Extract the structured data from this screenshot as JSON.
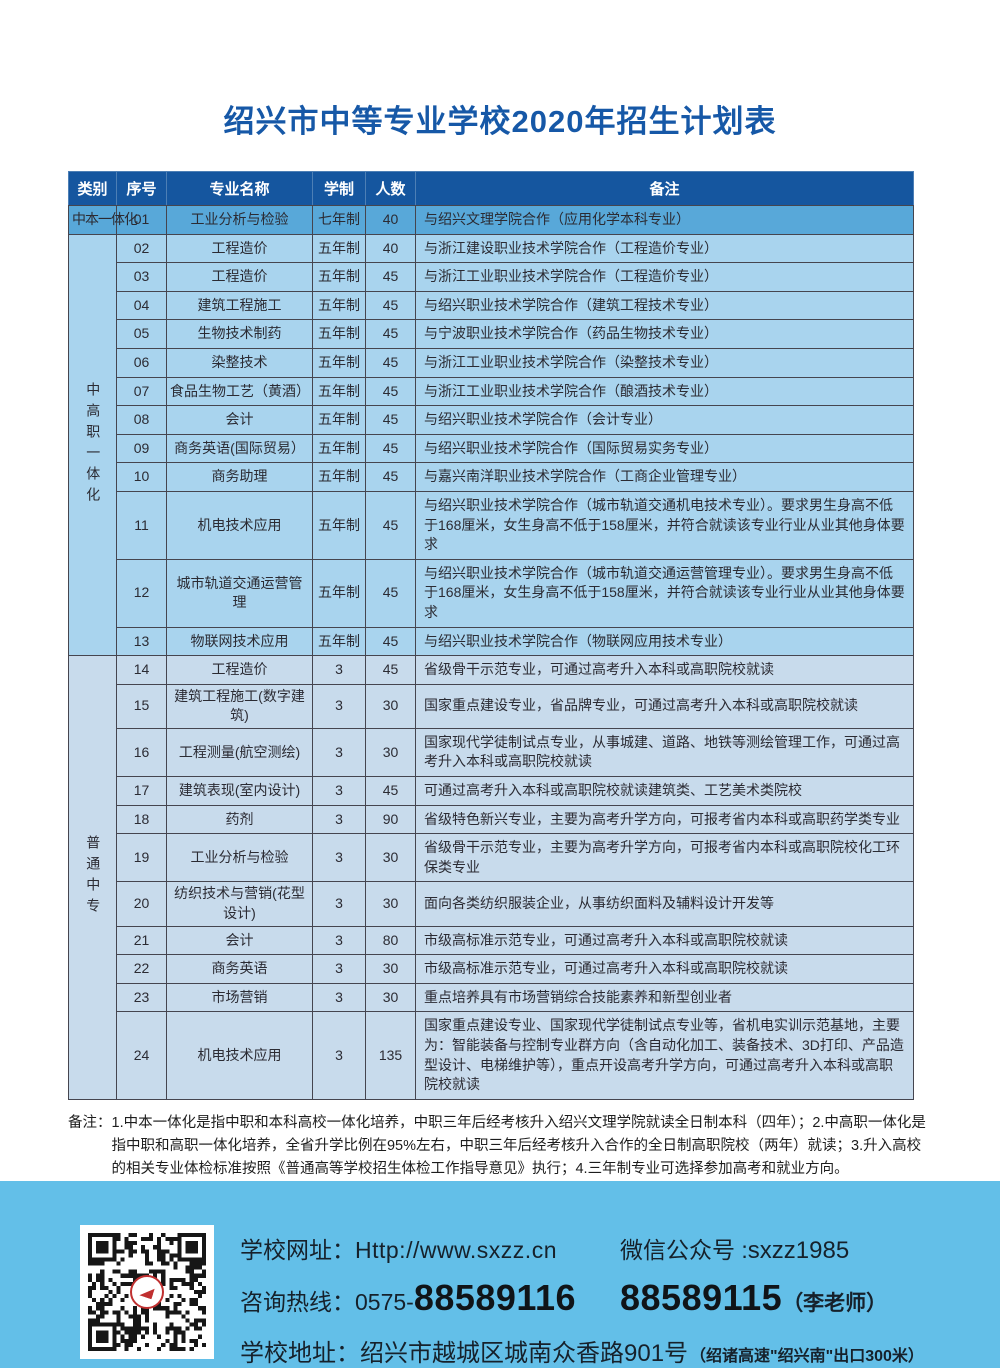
{
  "title": "绍兴市中等专业学校2020年招生计划表",
  "colors": {
    "header_bg": "#15569f",
    "row_group0": "#58a8d9",
    "row_group1": "#a9d4ee",
    "row_group2": "#c8dbec",
    "title_blue": "#1658a7",
    "footer_bg": "#63bfe8",
    "qr_logo_red": "#c03030"
  },
  "table": {
    "headers": [
      "类别",
      "序号",
      "专业名称",
      "学制",
      "人数",
      "备注"
    ],
    "groups": [
      {
        "label": "中本一体化",
        "vertical": false
      },
      {
        "label": "中高职一体化",
        "vertical": true
      },
      {
        "label": "普通中专",
        "vertical": true
      }
    ],
    "rows": [
      {
        "group": 0,
        "no": "01",
        "major": "工业分析与检验",
        "years": "七年制",
        "count": "40",
        "remark": "与绍兴文理学院合作（应用化学本科专业）"
      },
      {
        "group": 1,
        "no": "02",
        "major": "工程造价",
        "years": "五年制",
        "count": "40",
        "remark": "与浙江建设职业技术学院合作（工程造价专业）"
      },
      {
        "group": 1,
        "no": "03",
        "major": "工程造价",
        "years": "五年制",
        "count": "45",
        "remark": "与浙江工业职业技术学院合作（工程造价专业）"
      },
      {
        "group": 1,
        "no": "04",
        "major": "建筑工程施工",
        "years": "五年制",
        "count": "45",
        "remark": "与绍兴职业技术学院合作（建筑工程技术专业）"
      },
      {
        "group": 1,
        "no": "05",
        "major": "生物技术制药",
        "years": "五年制",
        "count": "45",
        "remark": "与宁波职业技术学院合作（药品生物技术专业）"
      },
      {
        "group": 1,
        "no": "06",
        "major": "染整技术",
        "years": "五年制",
        "count": "45",
        "remark": "与浙江工业职业技术学院合作（染整技术专业）"
      },
      {
        "group": 1,
        "no": "07",
        "major": "食品生物工艺（黄酒）",
        "years": "五年制",
        "count": "45",
        "remark": "与浙江工业职业技术学院合作（酿酒技术专业）"
      },
      {
        "group": 1,
        "no": "08",
        "major": "会计",
        "years": "五年制",
        "count": "45",
        "remark": "与绍兴职业技术学院合作（会计专业）"
      },
      {
        "group": 1,
        "no": "09",
        "major": "商务英语(国际贸易）",
        "years": "五年制",
        "count": "45",
        "remark": "与绍兴职业技术学院合作（国际贸易实务专业）"
      },
      {
        "group": 1,
        "no": "10",
        "major": "商务助理",
        "years": "五年制",
        "count": "45",
        "remark": "与嘉兴南洋职业技术学院合作（工商企业管理专业）"
      },
      {
        "group": 1,
        "no": "11",
        "major": "机电技术应用",
        "years": "五年制",
        "count": "45",
        "remark": "与绍兴职业技术学院合作（城市轨道交通机电技术专业）。要求男生身高不低于168厘米，女生身高不低于158厘米，并符合就读该专业行业从业其他身体要求"
      },
      {
        "group": 1,
        "no": "12",
        "major": "城市轨道交通运营管理",
        "years": "五年制",
        "count": "45",
        "remark": "与绍兴职业技术学院合作（城市轨道交通运营管理专业）。要求男生身高不低于168厘米，女生身高不低于158厘米，并符合就读该专业行业从业其他身体要求"
      },
      {
        "group": 1,
        "no": "13",
        "major": "物联网技术应用",
        "years": "五年制",
        "count": "45",
        "remark": "与绍兴职业技术学院合作（物联网应用技术专业）"
      },
      {
        "group": 2,
        "no": "14",
        "major": "工程造价",
        "years": "3",
        "count": "45",
        "remark": "省级骨干示范专业，可通过高考升入本科或高职院校就读"
      },
      {
        "group": 2,
        "no": "15",
        "major": "建筑工程施工(数字建筑)",
        "years": "3",
        "count": "30",
        "remark": "国家重点建设专业，省品牌专业，可通过高考升入本科或高职院校就读"
      },
      {
        "group": 2,
        "no": "16",
        "major": "工程测量(航空测绘)",
        "years": "3",
        "count": "30",
        "remark": "国家现代学徒制试点专业，从事城建、道路、地铁等测绘管理工作，可通过高考升入本科或高职院校就读"
      },
      {
        "group": 2,
        "no": "17",
        "major": "建筑表现(室内设计)",
        "years": "3",
        "count": "45",
        "remark": "可通过高考升入本科或高职院校就读建筑类、工艺美术类院校"
      },
      {
        "group": 2,
        "no": "18",
        "major": "药剂",
        "years": "3",
        "count": "90",
        "remark": "省级特色新兴专业，主要为高考升学方向，可报考省内本科或高职药学类专业"
      },
      {
        "group": 2,
        "no": "19",
        "major": "工业分析与检验",
        "years": "3",
        "count": "30",
        "remark": "省级骨干示范专业，主要为高考升学方向，可报考省内本科或高职院校化工环保类专业"
      },
      {
        "group": 2,
        "no": "20",
        "major": "纺织技术与营销(花型设计)",
        "years": "3",
        "count": "30",
        "remark": "面向各类纺织服装企业，从事纺织面料及辅料设计开发等"
      },
      {
        "group": 2,
        "no": "21",
        "major": "会计",
        "years": "3",
        "count": "80",
        "remark": "市级高标准示范专业，可通过高考升入本科或高职院校就读"
      },
      {
        "group": 2,
        "no": "22",
        "major": "商务英语",
        "years": "3",
        "count": "30",
        "remark": "市级高标准示范专业，可通过高考升入本科或高职院校就读"
      },
      {
        "group": 2,
        "no": "23",
        "major": "市场营销",
        "years": "3",
        "count": "30",
        "remark": "重点培养具有市场营销综合技能素养和新型创业者"
      },
      {
        "group": 2,
        "no": "24",
        "major": "机电技术应用",
        "years": "3",
        "count": "135",
        "remark": "国家重点建设专业、国家现代学徒制试点专业等，省机电实训示范基地，主要为：智能装备与控制专业群方向（含自动化加工、装备技术、3D打印、产品造型设计、电梯维护等），重点开设高考升学方向，可通过高考升入本科或高职院校就读"
      }
    ]
  },
  "notes": {
    "label": "备注：",
    "text": "1.中本一体化是指中职和本科高校一体化培养，中职三年后经考核升入绍兴文理学院就读全日制本科（四年）；2.中高职一体化是指中职和高职一体化培养，全省升学比例在95%左右，中职三年后经考核升入合作的全日制高职院校（两年）就读；3.升入高校的相关专业体检标准按照《普通高等学校招生体检工作指导意见》执行；4.三年制专业可选择参加高考和就业方向。"
  },
  "footer": {
    "qr_icon": "qr-code-icon",
    "website_label": "学校网址：",
    "website": "Http://www.sxzz.cn",
    "wechat_label": "微信公众号 :",
    "wechat": "sxzz1985",
    "hotline_label": "咨询热线：",
    "hotline_prefix": "0575-",
    "hotline_number": "88589116",
    "hotline_number2": "88589115",
    "hotline_teacher": "（李老师）",
    "address_label": "学校地址：",
    "address": "绍兴市越城区城南众香路901号",
    "address_note": "（绍诸高速\"绍兴南\"出口300米）"
  }
}
